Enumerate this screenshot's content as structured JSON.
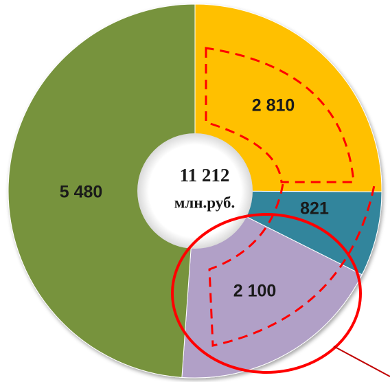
{
  "chart_data": {
    "type": "pie",
    "variant": "donut",
    "categories": [
      "",
      "",
      "",
      ""
    ],
    "values": [
      2810,
      821,
      2100,
      5480
    ],
    "value_labels": [
      "2 810",
      "821",
      "2 100",
      "5 480"
    ],
    "colors": [
      "#FFC000",
      "#31859C",
      "#B1A0C7",
      "#77933C"
    ],
    "center_total": "11 212",
    "center_unit": "млн.руб.",
    "highlight_colors": {
      "dashed_outline": "#FF0000",
      "ellipse": "#FF0000"
    }
  }
}
